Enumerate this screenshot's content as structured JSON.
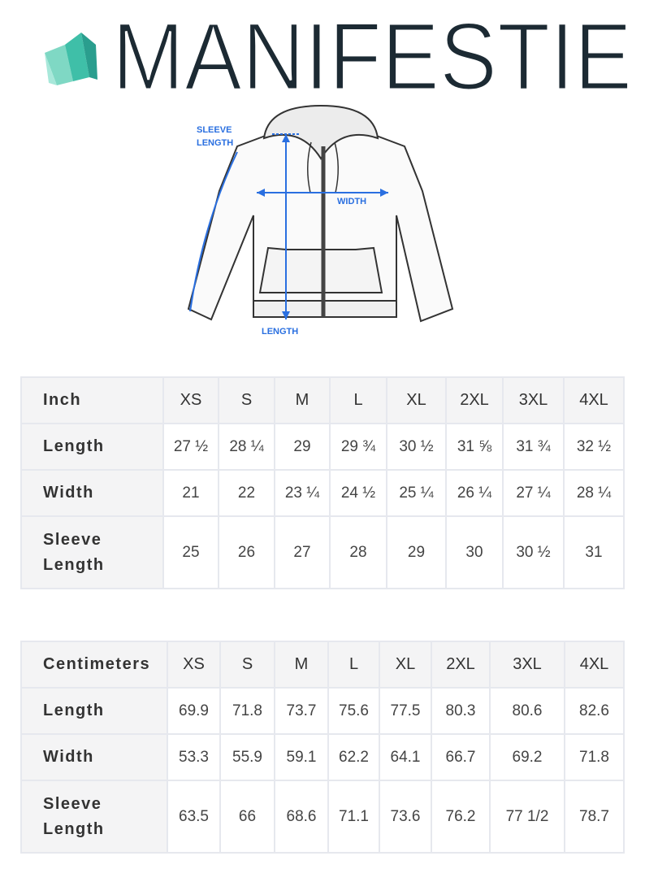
{
  "logo": {
    "text": "MANIFESTIE",
    "icon": "crystal-icon",
    "brand_color": "#1c2a33",
    "icon_color": "#3fbfa8"
  },
  "diagram": {
    "labels": {
      "sleeve_line1": "SLEEVE",
      "sleeve_line2": "LENGTH",
      "width": "WIDTH",
      "length": "LENGTH"
    },
    "arrow_color": "#2a6fe0"
  },
  "inch_table": {
    "header": [
      "Inch",
      "XS",
      "S",
      "M",
      "L",
      "XL",
      "2XL",
      "3XL",
      "4XL"
    ],
    "rows": [
      {
        "label": "Length",
        "values": [
          "27 ½",
          "28 ¼",
          "29",
          "29 ¾",
          "30 ½",
          "31 ⅝",
          "31 ¾",
          "32 ½"
        ]
      },
      {
        "label": "Width",
        "values": [
          "21",
          "22",
          "23 ¼",
          "24 ½",
          "25 ¼",
          "26 ¼",
          "27 ¼",
          "28 ¼"
        ]
      },
      {
        "label_line1": "Sleeve",
        "label_line2": "Length",
        "values": [
          "25",
          "26",
          "27",
          "28",
          "29",
          "30",
          "30 ½",
          "31"
        ]
      }
    ]
  },
  "cm_table": {
    "header": [
      "Centimeters",
      "XS",
      "S",
      "M",
      "L",
      "XL",
      "2XL",
      "3XL",
      "4XL"
    ],
    "rows": [
      {
        "label": "Length",
        "values": [
          "69.9",
          "71.8",
          "73.7",
          "75.6",
          "77.5",
          "80.3",
          "80.6",
          "82.6"
        ]
      },
      {
        "label": "Width",
        "values": [
          "53.3",
          "55.9",
          "59.1",
          "62.2",
          "64.1",
          "66.7",
          "69.2",
          "71.8"
        ]
      },
      {
        "label_line1": "Sleeve",
        "label_line2": "Length",
        "values": [
          "63.5",
          "66",
          "68.6",
          "71.1",
          "73.6",
          "76.2",
          "77 1/2",
          "78.7"
        ]
      }
    ]
  }
}
